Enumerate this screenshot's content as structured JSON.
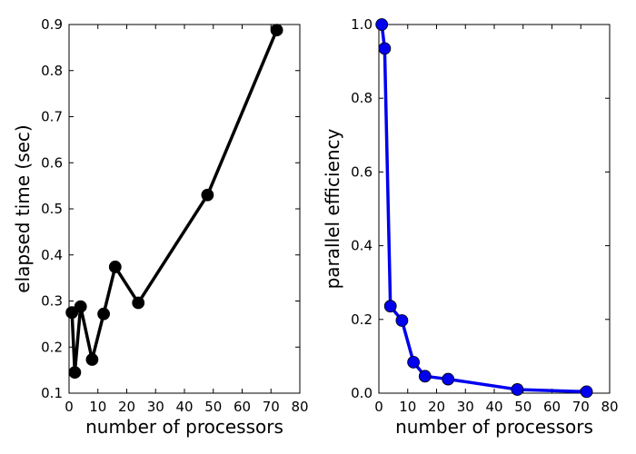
{
  "chart_data": [
    {
      "type": "line",
      "title": "",
      "xlabel": "number of processors",
      "ylabel": "elapsed time (sec)",
      "xlim": [
        0,
        80
      ],
      "ylim": [
        0.1,
        0.9
      ],
      "xticks": [
        0,
        10,
        20,
        30,
        40,
        50,
        60,
        70,
        80
      ],
      "xtick_labels": [
        "0",
        "10",
        "20",
        "30",
        "40",
        "50",
        "60",
        "70",
        "80"
      ],
      "yticks": [
        0.1,
        0.2,
        0.3,
        0.4,
        0.5,
        0.6,
        0.7,
        0.8,
        0.9
      ],
      "ytick_labels": [
        "0.1",
        "0.2",
        "0.3",
        "0.4",
        "0.5",
        "0.6",
        "0.7",
        "0.8",
        "0.9"
      ],
      "grid": false,
      "color": "#000000",
      "series": [
        {
          "x": [
            1,
            2,
            4,
            8,
            12,
            16,
            24,
            48,
            72
          ],
          "y": [
            0.275,
            0.145,
            0.288,
            0.173,
            0.272,
            0.374,
            0.296,
            0.53,
            0.888
          ]
        }
      ]
    },
    {
      "type": "line",
      "title": "",
      "xlabel": "number of processors",
      "ylabel": "parallel efficiency",
      "xlim": [
        0,
        80
      ],
      "ylim": [
        0.0,
        1.0
      ],
      "xticks": [
        0,
        10,
        20,
        30,
        40,
        50,
        60,
        70,
        80
      ],
      "xtick_labels": [
        "0",
        "10",
        "20",
        "30",
        "40",
        "50",
        "60",
        "70",
        "80"
      ],
      "yticks": [
        0.0,
        0.2,
        0.4,
        0.6,
        0.8,
        1.0
      ],
      "ytick_labels": [
        "0.0",
        "0.2",
        "0.4",
        "0.6",
        "0.8",
        "1.0"
      ],
      "grid": false,
      "color": "#0000ee",
      "series": [
        {
          "x": [
            1,
            2,
            4,
            8,
            12,
            16,
            24,
            48,
            72
          ],
          "y": [
            1.0,
            0.935,
            0.236,
            0.197,
            0.084,
            0.046,
            0.038,
            0.01,
            0.004
          ]
        }
      ]
    }
  ]
}
